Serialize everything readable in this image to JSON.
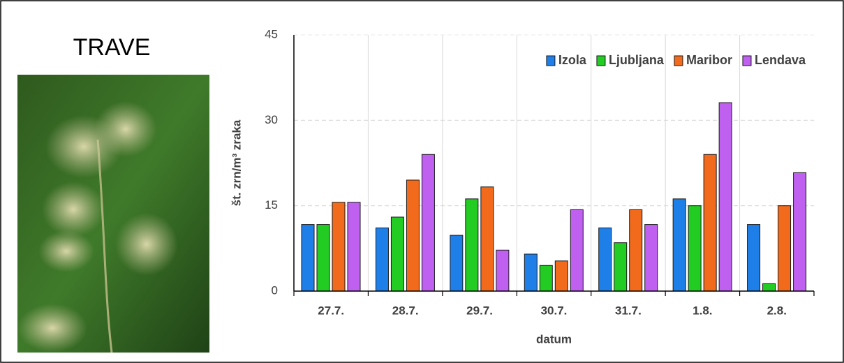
{
  "chart_data": {
    "type": "bar",
    "title": "TRAVE",
    "categories": [
      "27.7.",
      "28.7.",
      "29.7.",
      "30.7.",
      "31.7.",
      "1.8.",
      "2.8."
    ],
    "series": [
      {
        "name": "Izola",
        "color": "#1f7fe8",
        "values": [
          11.7,
          11.1,
          9.8,
          6.5,
          11.1,
          16.2,
          11.7
        ]
      },
      {
        "name": "Ljubljana",
        "color": "#22cc22",
        "values": [
          11.7,
          13.0,
          16.2,
          4.5,
          8.5,
          15.0,
          1.3
        ]
      },
      {
        "name": "Maribor",
        "color": "#f26a1b",
        "values": [
          15.6,
          19.5,
          18.3,
          5.3,
          14.3,
          24.0,
          15.0
        ]
      },
      {
        "name": "Lendava",
        "color": "#c060f0",
        "values": [
          15.6,
          24.0,
          7.2,
          14.3,
          11.7,
          33.1,
          20.8
        ]
      }
    ],
    "ylim": [
      0,
      45
    ],
    "yticks": [
      0,
      15,
      30,
      45
    ],
    "y_label": "št. zrn/m³ zraka",
    "x_label": "datum",
    "grid": true,
    "legend": "top-right"
  }
}
